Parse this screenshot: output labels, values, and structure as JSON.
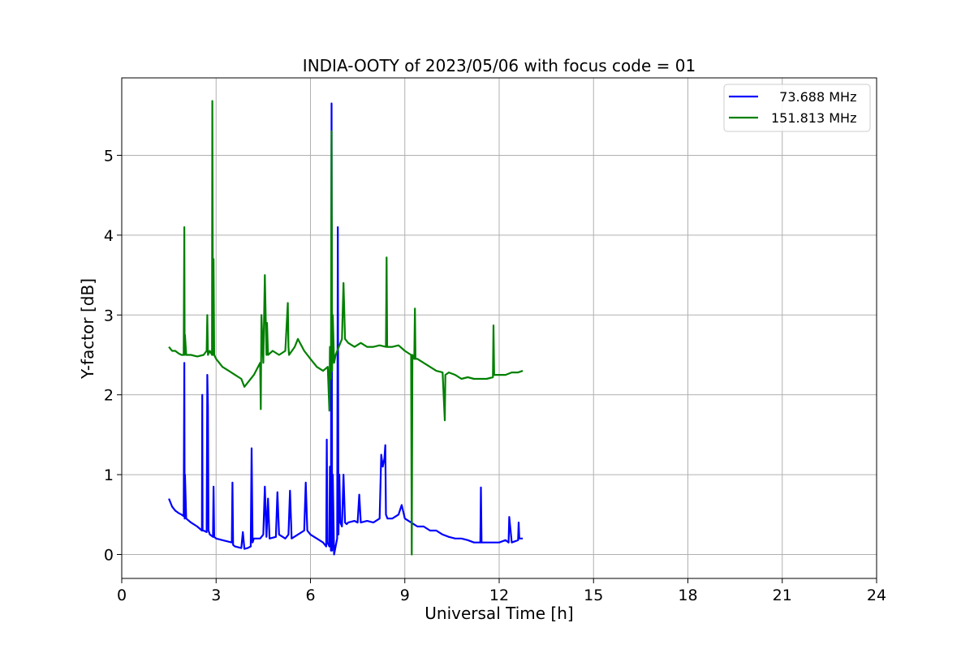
{
  "chart_data": {
    "type": "line",
    "title": "INDIA-OOTY of 2023/05/06 with focus code = 01",
    "xlabel": "Universal Time [h]",
    "ylabel": "Y-factor [dB]",
    "xlim": [
      0,
      24
    ],
    "ylim": [
      -0.3,
      5.97
    ],
    "xticks": [
      0,
      3,
      6,
      9,
      12,
      15,
      18,
      21,
      24
    ],
    "yticks": [
      0,
      1,
      2,
      3,
      4,
      5
    ],
    "grid": true,
    "legend_position": "top-right",
    "series": [
      {
        "name": "  73.688 MHz",
        "color": "#0000ff",
        "x": [
          1.5,
          1.6,
          1.7,
          1.8,
          1.9,
          1.97,
          1.99,
          2.0,
          2.01,
          2.05,
          2.2,
          2.4,
          2.55,
          2.56,
          2.57,
          2.6,
          2.7,
          2.72,
          2.74,
          2.76,
          2.8,
          2.9,
          2.92,
          2.94,
          3.0,
          3.2,
          3.5,
          3.52,
          3.54,
          3.6,
          3.8,
          3.85,
          3.9,
          4.0,
          4.1,
          4.13,
          4.16,
          4.2,
          4.4,
          4.5,
          4.55,
          4.6,
          4.65,
          4.7,
          4.9,
          4.95,
          5.0,
          5.2,
          5.3,
          5.35,
          5.4,
          5.6,
          5.8,
          5.85,
          5.9,
          6.0,
          6.2,
          6.4,
          6.5,
          6.52,
          6.54,
          6.6,
          6.62,
          6.65,
          6.67,
          6.69,
          6.71,
          6.75,
          6.8,
          6.85,
          6.87,
          6.89,
          6.92,
          6.95,
          7.0,
          7.05,
          7.1,
          7.15,
          7.2,
          7.4,
          7.5,
          7.55,
          7.6,
          7.8,
          8.0,
          8.2,
          8.25,
          8.3,
          8.35,
          8.38,
          8.4,
          8.45,
          8.6,
          8.8,
          8.9,
          9.0,
          9.2,
          9.4,
          9.6,
          9.8,
          10.0,
          10.2,
          10.4,
          10.6,
          10.8,
          11.0,
          11.2,
          11.4,
          11.42,
          11.44,
          11.5,
          11.8,
          12.0,
          12.2,
          12.3,
          12.32,
          12.4,
          12.6,
          12.62,
          12.64,
          12.7,
          12.75
        ],
        "values": [
          0.7,
          0.6,
          0.55,
          0.52,
          0.5,
          0.48,
          2.4,
          0.45,
          1.0,
          0.45,
          0.4,
          0.35,
          0.3,
          2.0,
          0.3,
          0.3,
          0.28,
          2.25,
          1.85,
          0.3,
          0.25,
          0.22,
          0.85,
          0.22,
          0.2,
          0.18,
          0.15,
          0.9,
          0.12,
          0.1,
          0.08,
          0.28,
          0.07,
          0.08,
          0.1,
          1.33,
          0.15,
          0.2,
          0.2,
          0.25,
          0.85,
          0.22,
          0.7,
          0.2,
          0.22,
          0.78,
          0.25,
          0.2,
          0.25,
          0.8,
          0.2,
          0.25,
          0.3,
          0.9,
          0.3,
          0.25,
          0.2,
          0.15,
          0.1,
          1.44,
          0.15,
          0.1,
          1.1,
          0.05,
          5.65,
          0.05,
          1.0,
          0.0,
          0.1,
          0.2,
          4.1,
          0.25,
          1.0,
          0.4,
          0.35,
          1.0,
          0.4,
          0.38,
          0.4,
          0.42,
          0.4,
          0.75,
          0.4,
          0.42,
          0.4,
          0.45,
          1.25,
          1.1,
          1.2,
          1.37,
          0.5,
          0.45,
          0.45,
          0.5,
          0.62,
          0.45,
          0.4,
          0.35,
          0.35,
          0.3,
          0.3,
          0.25,
          0.22,
          0.2,
          0.2,
          0.18,
          0.15,
          0.15,
          0.84,
          0.15,
          0.15,
          0.15,
          0.15,
          0.18,
          0.15,
          0.47,
          0.15,
          0.18,
          0.4,
          0.2,
          0.2,
          0.2
        ]
      },
      {
        "name": "151.813 MHz",
        "color": "#008000",
        "x": [
          1.5,
          1.6,
          1.7,
          1.8,
          1.9,
          1.97,
          1.99,
          2.0,
          2.01,
          2.05,
          2.2,
          2.4,
          2.6,
          2.7,
          2.72,
          2.74,
          2.8,
          2.87,
          2.88,
          2.9,
          2.92,
          2.94,
          3.0,
          3.2,
          3.4,
          3.6,
          3.8,
          3.9,
          4.0,
          4.2,
          4.4,
          4.42,
          4.44,
          4.5,
          4.55,
          4.6,
          4.62,
          4.65,
          4.8,
          5.0,
          5.2,
          5.28,
          5.3,
          5.32,
          5.5,
          5.6,
          5.8,
          6.0,
          6.2,
          6.4,
          6.55,
          6.6,
          6.62,
          6.65,
          6.67,
          6.69,
          6.71,
          6.75,
          6.8,
          6.9,
          7.0,
          7.05,
          7.1,
          7.2,
          7.4,
          7.6,
          7.8,
          8.0,
          8.2,
          8.4,
          8.42,
          8.44,
          8.6,
          8.8,
          9.0,
          9.2,
          9.22,
          9.24,
          9.3,
          9.32,
          9.34,
          9.4,
          9.6,
          9.8,
          10.0,
          10.2,
          10.27,
          10.29,
          10.4,
          10.6,
          10.8,
          11.0,
          11.2,
          11.4,
          11.6,
          11.8,
          11.82,
          11.84,
          12.0,
          12.2,
          12.4,
          12.6,
          12.75
        ],
        "values": [
          2.6,
          2.55,
          2.55,
          2.52,
          2.5,
          2.5,
          4.1,
          2.5,
          2.75,
          2.5,
          2.5,
          2.48,
          2.5,
          2.55,
          3.0,
          2.5,
          2.55,
          2.5,
          5.68,
          2.5,
          3.7,
          2.5,
          2.45,
          2.35,
          2.3,
          2.25,
          2.2,
          2.1,
          2.15,
          2.25,
          2.4,
          1.82,
          3.0,
          2.4,
          3.5,
          2.5,
          2.9,
          2.5,
          2.55,
          2.5,
          2.55,
          3.15,
          2.6,
          2.5,
          2.6,
          2.7,
          2.55,
          2.45,
          2.35,
          2.3,
          2.35,
          1.8,
          2.6,
          2.2,
          5.3,
          2.3,
          3.0,
          2.4,
          2.5,
          2.6,
          2.7,
          3.4,
          2.7,
          2.65,
          2.6,
          2.65,
          2.6,
          2.6,
          2.62,
          2.6,
          3.72,
          2.6,
          2.6,
          2.62,
          2.55,
          2.5,
          0.0,
          2.5,
          2.45,
          3.08,
          2.45,
          2.45,
          2.4,
          2.35,
          2.3,
          2.28,
          1.68,
          2.25,
          2.28,
          2.25,
          2.2,
          2.22,
          2.2,
          2.2,
          2.2,
          2.22,
          2.87,
          2.25,
          2.25,
          2.25,
          2.28,
          2.28,
          2.3
        ]
      }
    ]
  }
}
